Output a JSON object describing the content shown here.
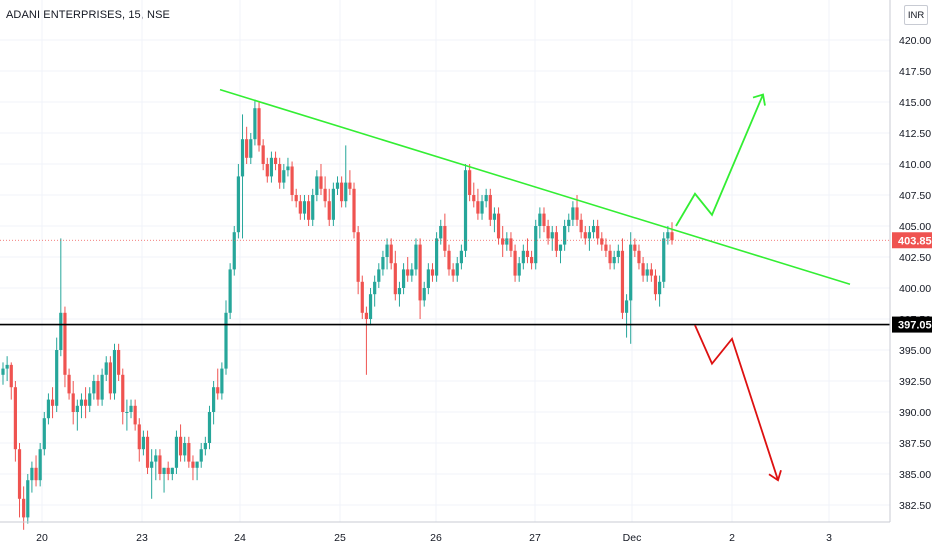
{
  "header": {
    "title": "ADANI ENTERPRISES, 15, NSE",
    "currency": "INR"
  },
  "colors": {
    "up": "#26a69a",
    "down": "#ef5350",
    "green_line": "#33ee33",
    "red_line": "#dd1111",
    "support": "#000000",
    "price_badge": "#ef5350"
  },
  "chart_data": {
    "type": "candlestick",
    "title": "ADANI ENTERPRISES, 15, NSE",
    "xlabel": "",
    "ylabel": "",
    "ylim": [
      380.8,
      423.8
    ],
    "yticks": [
      "382.50",
      "385.00",
      "387.50",
      "390.00",
      "392.50",
      "395.00",
      "397.50",
      "400.00",
      "402.50",
      "405.00",
      "407.50",
      "410.00",
      "412.50",
      "415.00",
      "417.50",
      "420.00"
    ],
    "xticks": [
      "20",
      "23",
      "24",
      "25",
      "26",
      "27",
      "Dec",
      "2",
      "3"
    ],
    "grid": true,
    "support_level": 397.05,
    "support_label": "397.05",
    "last_price": 403.85,
    "last_price_label": "403.85",
    "descending_trendline": {
      "from": [
        "24",
        416.0
      ],
      "to": [
        "3",
        400.3
      ]
    },
    "bullish_projection": [
      [
        405.0,
        407.6,
        405.9,
        415.6
      ]
    ],
    "bearish_projection": [
      [
        397.0,
        393.9,
        395.9,
        384.5
      ]
    ],
    "candles_ohlc": [
      [
        393,
        394,
        392.2,
        393.5
      ],
      [
        393.5,
        394.5,
        392.5,
        393.8
      ],
      [
        393.8,
        394,
        391,
        392
      ],
      [
        392,
        392.5,
        386,
        387
      ],
      [
        387,
        387.5,
        381.5,
        383
      ],
      [
        383,
        384,
        380.5,
        381.5
      ],
      [
        381.5,
        385,
        381,
        384.5
      ],
      [
        384.5,
        386,
        383.5,
        385.5
      ],
      [
        385.5,
        386.5,
        384,
        384.5
      ],
      [
        384.5,
        387.5,
        384,
        387
      ],
      [
        387,
        390,
        386.5,
        389.5
      ],
      [
        389.5,
        391.5,
        389,
        391
      ],
      [
        391,
        392,
        389.5,
        390.5
      ],
      [
        390.5,
        396,
        390,
        395
      ],
      [
        395,
        404,
        394.5,
        398
      ],
      [
        398,
        398.5,
        392,
        393
      ],
      [
        393,
        393.5,
        391,
        391.5
      ],
      [
        391.5,
        392.5,
        389,
        390
      ],
      [
        390,
        391,
        388.5,
        390.5
      ],
      [
        390.5,
        391.5,
        389.5,
        391
      ],
      [
        391,
        392,
        389.5,
        390.5
      ],
      [
        390.5,
        392,
        390,
        391.5
      ],
      [
        391.5,
        393,
        391,
        392.5
      ],
      [
        392.5,
        393,
        390.5,
        391
      ],
      [
        391,
        393.5,
        390.5,
        393
      ],
      [
        393,
        394.5,
        392.5,
        394
      ],
      [
        394,
        394.5,
        391,
        391.5
      ],
      [
        391.5,
        395.5,
        391,
        395
      ],
      [
        395,
        395.5,
        392.5,
        393
      ],
      [
        393,
        393.5,
        389,
        390
      ],
      [
        390,
        391,
        388.5,
        390
      ],
      [
        390,
        391,
        389.5,
        390.5
      ],
      [
        390.5,
        391,
        388.5,
        389
      ],
      [
        389,
        389.5,
        386,
        387
      ],
      [
        387,
        388.5,
        386.5,
        388
      ],
      [
        388,
        388.5,
        385,
        385.5
      ],
      [
        385.5,
        387,
        383,
        386
      ],
      [
        386,
        387,
        384.5,
        386.5
      ],
      [
        386.5,
        387,
        384.5,
        385
      ],
      [
        385,
        385.5,
        383.5,
        385.5
      ],
      [
        385.5,
        386,
        384.5,
        385
      ],
      [
        385,
        385.5,
        384.5,
        385.5
      ],
      [
        385.5,
        388.5,
        385,
        388
      ],
      [
        388,
        389,
        386,
        386.5
      ],
      [
        386.5,
        388,
        386,
        387.5
      ],
      [
        387.5,
        388,
        385.5,
        386
      ],
      [
        386,
        386.5,
        384.5,
        385.5
      ],
      [
        385.5,
        386,
        384.5,
        386
      ],
      [
        386,
        387.5,
        385.5,
        387
      ],
      [
        387,
        388,
        386.5,
        387.5
      ],
      [
        387.5,
        390.5,
        387,
        390
      ],
      [
        390,
        392.5,
        389,
        392
      ],
      [
        392,
        393.5,
        391,
        391.5
      ],
      [
        391.5,
        394,
        391,
        393.5
      ],
      [
        393.5,
        399,
        393,
        398
      ],
      [
        398,
        402,
        397.5,
        401.5
      ],
      [
        401.5,
        405,
        401,
        404.5
      ],
      [
        404.5,
        410,
        404,
        409
      ],
      [
        409,
        414,
        404,
        412
      ],
      [
        412,
        413,
        410,
        410.5
      ],
      [
        410.5,
        412.5,
        410,
        412
      ],
      [
        412,
        415.2,
        411.5,
        414.5
      ],
      [
        414.5,
        415,
        411,
        411.5
      ],
      [
        411.5,
        412,
        409.5,
        410
      ],
      [
        410,
        410.5,
        408.5,
        409
      ],
      [
        409,
        411,
        408.5,
        410.5
      ],
      [
        410.5,
        411,
        409.5,
        410
      ],
      [
        410,
        410.5,
        408,
        408.5
      ],
      [
        408.5,
        410,
        408,
        409.5
      ],
      [
        409.5,
        410.5,
        409,
        409.8
      ],
      [
        409.8,
        410.2,
        407,
        407.5
      ],
      [
        407.5,
        408,
        406.5,
        407
      ],
      [
        407,
        407.5,
        405.5,
        406
      ],
      [
        406,
        407.5,
        405.5,
        407
      ],
      [
        407,
        407.5,
        405,
        405.5
      ],
      [
        405.5,
        408,
        405,
        407.5
      ],
      [
        407.5,
        409.5,
        407,
        409
      ],
      [
        409,
        410,
        407.5,
        408
      ],
      [
        408,
        409,
        406.5,
        407
      ],
      [
        407,
        408,
        405,
        405.5
      ],
      [
        405.5,
        408.5,
        405,
        408
      ],
      [
        408,
        409,
        407.5,
        408.5
      ],
      [
        408.5,
        409,
        406.5,
        407
      ],
      [
        407,
        411.5,
        406.5,
        408.5
      ],
      [
        408.5,
        409.5,
        407.5,
        408
      ],
      [
        408,
        408.5,
        404,
        404.5
      ],
      [
        404.5,
        405,
        399.5,
        400.5
      ],
      [
        400.5,
        401,
        397.5,
        398
      ],
      [
        398,
        398.5,
        393,
        397.5
      ],
      [
        397.5,
        400,
        397,
        399.5
      ],
      [
        399.5,
        401,
        398.5,
        400.5
      ],
      [
        400.5,
        402,
        400,
        401.5
      ],
      [
        401.5,
        403,
        401,
        402.5
      ],
      [
        402.5,
        404,
        401.5,
        403.5
      ],
      [
        403.5,
        404,
        401.5,
        402
      ],
      [
        402,
        403,
        399,
        399.5
      ],
      [
        399.5,
        400.5,
        398.5,
        400
      ],
      [
        400,
        402,
        399.5,
        401.5
      ],
      [
        401.5,
        402.5,
        400.5,
        401
      ],
      [
        401,
        402,
        400.5,
        401.5
      ],
      [
        401.5,
        404,
        401,
        403.5
      ],
      [
        403.5,
        404,
        397.5,
        399
      ],
      [
        399,
        400.5,
        398.5,
        400
      ],
      [
        400,
        402,
        399.5,
        401.5
      ],
      [
        401.5,
        402,
        400.5,
        401
      ],
      [
        401,
        404.5,
        400.5,
        404
      ],
      [
        404,
        405.5,
        403.5,
        405
      ],
      [
        405,
        406,
        402.5,
        403
      ],
      [
        403,
        403.5,
        401,
        401.5
      ],
      [
        401.5,
        402,
        400.5,
        401
      ],
      [
        401,
        402.5,
        400.5,
        402
      ],
      [
        402,
        403.5,
        401.5,
        403
      ],
      [
        403,
        410,
        402.5,
        409.5
      ],
      [
        409.5,
        410,
        407,
        407.5
      ],
      [
        407.5,
        408.5,
        406.5,
        407
      ],
      [
        407,
        408,
        405.5,
        406
      ],
      [
        406,
        407.5,
        405.5,
        407
      ],
      [
        407,
        408,
        406.5,
        407.5
      ],
      [
        407.5,
        408,
        405,
        405.5
      ],
      [
        405.5,
        406.5,
        404.5,
        406
      ],
      [
        406,
        406.5,
        403.5,
        404
      ],
      [
        404,
        405,
        402.5,
        403.5
      ],
      [
        403.5,
        404.5,
        403,
        404
      ],
      [
        404,
        404.5,
        402.5,
        403
      ],
      [
        403,
        403.5,
        400.5,
        401
      ],
      [
        401,
        402.5,
        400.5,
        402
      ],
      [
        402,
        403.5,
        401.5,
        403
      ],
      [
        403,
        404,
        402,
        402.5
      ],
      [
        402.5,
        403,
        401.5,
        402
      ],
      [
        402,
        405.5,
        401.5,
        405
      ],
      [
        405,
        406.5,
        404,
        406
      ],
      [
        406,
        406.5,
        404.5,
        405
      ],
      [
        405,
        405.5,
        403.5,
        404
      ],
      [
        404,
        405,
        403,
        404.5
      ],
      [
        404.5,
        405,
        402.5,
        403
      ],
      [
        403,
        403.5,
        402,
        403.5
      ],
      [
        403.5,
        405.5,
        403,
        405
      ],
      [
        405,
        406,
        404.5,
        405.5
      ],
      [
        405.5,
        407,
        405,
        406.5
      ],
      [
        406.5,
        407.5,
        405,
        405.5
      ],
      [
        405.5,
        406,
        404,
        404.5
      ],
      [
        404.5,
        405,
        403.5,
        404
      ],
      [
        404,
        405,
        403,
        404.5
      ],
      [
        404.5,
        405.5,
        404,
        405
      ],
      [
        405,
        405.5,
        403.5,
        404
      ],
      [
        404,
        404.5,
        403,
        403.5
      ],
      [
        403.5,
        404,
        402.5,
        403
      ],
      [
        403,
        403.5,
        401.5,
        402
      ],
      [
        402,
        403,
        401.5,
        402.5
      ],
      [
        402.5,
        403.5,
        402,
        403
      ],
      [
        403,
        404,
        397.5,
        398
      ],
      [
        398,
        399.5,
        396,
        399
      ],
      [
        399,
        404.5,
        395.5,
        403.5
      ],
      [
        403.5,
        404,
        402.5,
        403
      ],
      [
        403,
        403.5,
        401.5,
        402
      ],
      [
        402,
        402.5,
        400.5,
        401
      ],
      [
        401,
        402,
        400.5,
        401.5
      ],
      [
        401.5,
        402,
        400.5,
        401
      ],
      [
        401,
        401.5,
        399,
        399.5
      ],
      [
        399.5,
        401,
        398.5,
        400.5
      ],
      [
        400.5,
        404.5,
        400,
        404
      ],
      [
        404,
        405,
        403.5,
        404.5
      ],
      [
        404.5,
        405.3,
        403.5,
        403.85
      ]
    ]
  }
}
